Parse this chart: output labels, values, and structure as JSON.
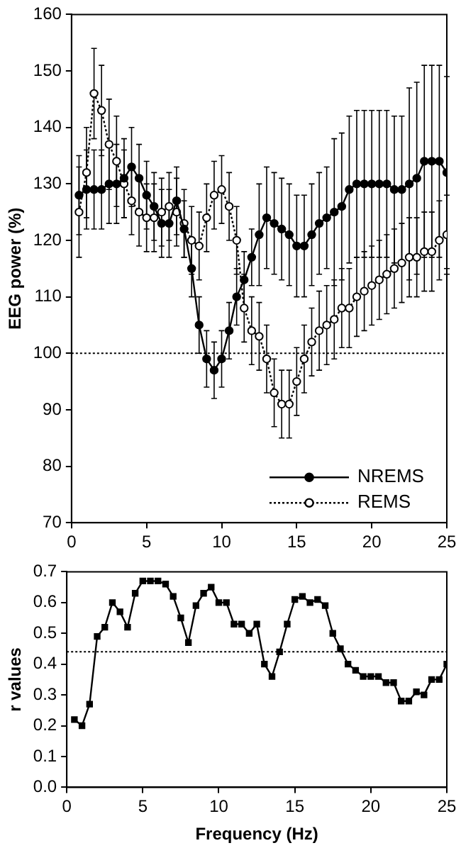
{
  "chart_data": [
    {
      "type": "line",
      "ylabel": "EEG power (%)",
      "xlim": [
        0,
        25
      ],
      "xticks": [
        0,
        5,
        10,
        15,
        20,
        25
      ],
      "ylim": [
        70,
        160
      ],
      "yticks": [
        70,
        80,
        90,
        100,
        110,
        120,
        130,
        140,
        150,
        160
      ],
      "legend": "bottom right",
      "grid": false,
      "marker": "circle",
      "tick_labels": "xy",
      "ref_lines": [
        {
          "axis": "y",
          "value": 100,
          "line_style": "dotted",
          "color": "#000000"
        }
      ],
      "x": [
        0.5,
        1,
        1.5,
        2,
        2.5,
        3,
        3.5,
        4,
        4.5,
        5,
        5.5,
        6,
        6.5,
        7,
        7.5,
        8,
        8.5,
        9,
        9.5,
        10,
        10.5,
        11,
        11.5,
        12,
        12.5,
        13,
        13.5,
        14,
        14.5,
        15,
        15.5,
        16,
        16.5,
        17,
        17.5,
        18,
        18.5,
        19,
        19.5,
        20,
        20.5,
        21,
        21.5,
        22,
        22.5,
        23,
        23.5,
        24,
        24.5,
        25
      ],
      "series": [
        {
          "name": "NREMS",
          "color": "#000000",
          "line_style": "solid",
          "values": [
            128,
            129,
            129,
            129,
            130,
            130,
            131,
            133,
            131,
            128,
            126,
            123,
            123,
            127,
            122,
            115,
            105,
            99,
            97,
            99,
            104,
            110,
            113,
            117,
            121,
            124,
            123,
            122,
            121,
            119,
            119,
            121,
            123,
            124,
            125,
            126,
            129,
            130,
            130,
            130,
            130,
            130,
            129,
            129,
            130,
            131,
            134,
            134,
            134,
            132
          ],
          "errors": [
            7,
            7,
            7,
            7,
            7,
            7,
            7,
            7,
            6,
            6,
            6,
            6,
            6,
            6,
            5,
            5,
            5,
            5,
            5,
            5,
            5,
            5,
            5,
            5,
            9,
            9,
            9,
            9,
            9,
            9,
            9,
            9,
            9,
            9,
            13,
            13,
            13,
            13,
            13,
            13,
            13,
            13,
            13,
            13,
            17,
            17,
            17,
            17,
            17,
            17
          ]
        },
        {
          "name": "REMS",
          "color": "#000000",
          "line_style": "dotted",
          "values": [
            125,
            132,
            146,
            143,
            137,
            134,
            130,
            127,
            125,
            124,
            124,
            125,
            126,
            125,
            123,
            120,
            119,
            124,
            128,
            129,
            126,
            120,
            108,
            104,
            103,
            99,
            93,
            91,
            91,
            95,
            99,
            102,
            104,
            105,
            106,
            108,
            108,
            110,
            111,
            112,
            113,
            114,
            115,
            116,
            117,
            117,
            118,
            118,
            120,
            121
          ],
          "errors": [
            8,
            8,
            8,
            8,
            8,
            8,
            6,
            6,
            6,
            6,
            6,
            6,
            6,
            6,
            6,
            6,
            6,
            6,
            6,
            6,
            6,
            6,
            6,
            6,
            6,
            6,
            6,
            6,
            6,
            6,
            6,
            6,
            7,
            7,
            7,
            7,
            7,
            7,
            7,
            7,
            7,
            7,
            7,
            7,
            7,
            7,
            7,
            7,
            7,
            7
          ]
        }
      ]
    },
    {
      "type": "line",
      "xlabel": "Frequency (Hz)",
      "ylabel": "r values",
      "xlim": [
        0,
        25
      ],
      "xticks": [
        0,
        5,
        10,
        15,
        20,
        25
      ],
      "ylim": [
        0,
        0.7
      ],
      "yticks": [
        {
          "value": 0,
          "label": "0.0"
        },
        0.1,
        0.2,
        0.3,
        0.4,
        0.5,
        0.6,
        0.7
      ],
      "grid": false,
      "marker": "square",
      "ref_lines": [
        {
          "axis": "y",
          "value": 0.44,
          "line_style": "dotted",
          "color": "#000000"
        }
      ],
      "x": [
        0.5,
        1,
        1.5,
        2,
        2.5,
        3,
        3.5,
        4,
        4.5,
        5,
        5.5,
        6,
        6.5,
        7,
        7.5,
        8,
        8.5,
        9,
        9.5,
        10,
        10.5,
        11,
        11.5,
        12,
        12.5,
        13,
        13.5,
        14,
        14.5,
        15,
        15.5,
        16,
        16.5,
        17,
        17.5,
        18,
        18.5,
        19,
        19.5,
        20,
        20.5,
        21,
        21.5,
        22,
        22.5,
        23,
        23.5,
        24,
        24.5,
        25
      ],
      "series": [
        {
          "color": "#000000",
          "line_style": "solid",
          "values": [
            0.22,
            0.2,
            0.27,
            0.49,
            0.52,
            0.6,
            0.57,
            0.52,
            0.63,
            0.67,
            0.67,
            0.67,
            0.66,
            0.62,
            0.55,
            0.47,
            0.59,
            0.63,
            0.65,
            0.6,
            0.6,
            0.53,
            0.53,
            0.5,
            0.53,
            0.4,
            0.36,
            0.44,
            0.53,
            0.61,
            0.62,
            0.6,
            0.61,
            0.59,
            0.5,
            0.45,
            0.4,
            0.38,
            0.36,
            0.36,
            0.36,
            0.34,
            0.34,
            0.28,
            0.28,
            0.31,
            0.3,
            0.35,
            0.35,
            0.4
          ]
        }
      ]
    }
  ]
}
